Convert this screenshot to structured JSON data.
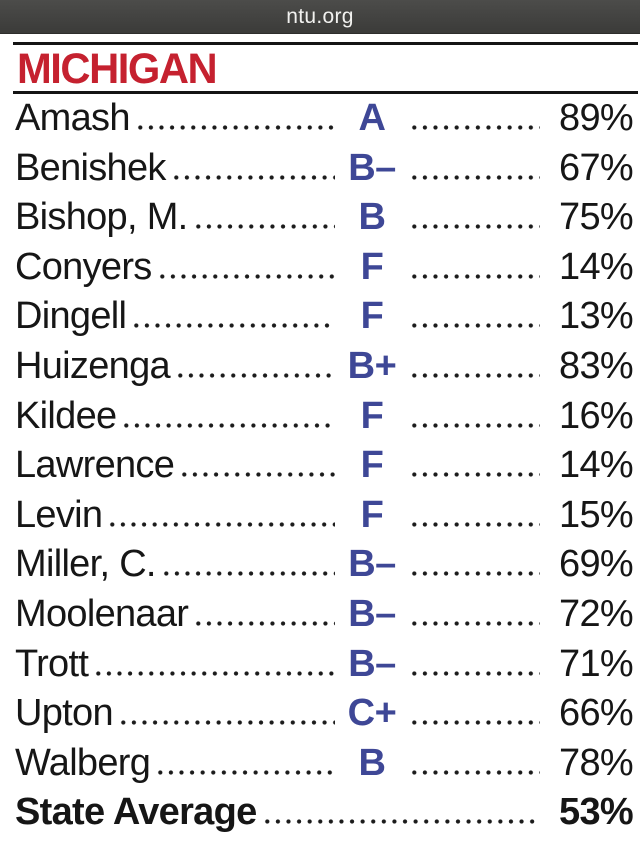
{
  "browser": {
    "url": "ntu.org"
  },
  "page": {
    "title": "MICHIGAN",
    "colors": {
      "title_red": "#c5212f",
      "grade_blue": "#3e4796",
      "topbar_gray": "#434341",
      "text_black": "#161616"
    },
    "table": {
      "rows": [
        {
          "name": "Amash",
          "grade": "A",
          "score": "89%"
        },
        {
          "name": "Benishek",
          "grade": "B–",
          "score": "67%"
        },
        {
          "name": "Bishop, M.",
          "grade": "B",
          "score": "75%"
        },
        {
          "name": "Conyers",
          "grade": "F",
          "score": "14%"
        },
        {
          "name": "Dingell",
          "grade": "F",
          "score": "13%"
        },
        {
          "name": "Huizenga",
          "grade": "B+",
          "score": "83%"
        },
        {
          "name": "Kildee",
          "grade": "F",
          "score": "16%"
        },
        {
          "name": "Lawrence",
          "grade": "F",
          "score": "14%"
        },
        {
          "name": "Levin",
          "grade": "F",
          "score": "15%"
        },
        {
          "name": "Miller, C.",
          "grade": "B–",
          "score": "69%"
        },
        {
          "name": "Moolenaar",
          "grade": "B–",
          "score": "72%"
        },
        {
          "name": "Trott",
          "grade": "B–",
          "score": "71%"
        },
        {
          "name": "Upton",
          "grade": "C+",
          "score": "66%"
        },
        {
          "name": "Walberg",
          "grade": "B",
          "score": "78%"
        }
      ],
      "summary": {
        "label": "State Average",
        "score": "53%"
      }
    }
  }
}
